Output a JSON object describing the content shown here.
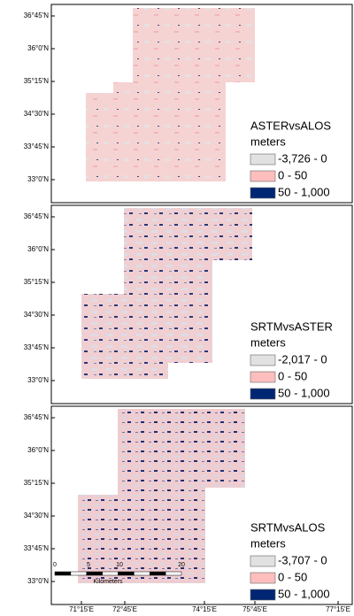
{
  "panels": [
    {
      "lat_labels": [
        "36°45'N",
        "36°0'N",
        "35°15'N",
        "34°30'N",
        "33°45'N",
        "33°0'N"
      ],
      "legend": {
        "title": "ASTERvsALOS",
        "unit": "meters",
        "items": [
          {
            "label": "-3,726 - 0",
            "color": "#e1e1e1"
          },
          {
            "label": "0 - 50",
            "color": "#ffbebe"
          },
          {
            "label": "50 - 1,000",
            "color": "#002673"
          }
        ]
      }
    },
    {
      "lat_labels": [
        "36°45'N",
        "36°0'N",
        "35°15'N",
        "34°30'N",
        "33°45'N",
        "33°0'N"
      ],
      "legend": {
        "title": "SRTMvsASTER",
        "unit": "meters",
        "items": [
          {
            "label": "-2,017 - 0",
            "color": "#e1e1e1"
          },
          {
            "label": "0 - 50",
            "color": "#ffbebe"
          },
          {
            "label": "50 - 1,000",
            "color": "#002673"
          }
        ]
      }
    },
    {
      "lat_labels": [
        "36°45'N",
        "36°0'N",
        "35°15'N",
        "34°30'N",
        "33°45'N",
        "33°0'N"
      ],
      "legend": {
        "title": "SRTMvsALOS",
        "unit": "meters",
        "items": [
          {
            "label": "-3,707 - 0",
            "color": "#e1e1e1"
          },
          {
            "label": "0 - 50",
            "color": "#ffbebe"
          },
          {
            "label": "50 - 1,000",
            "color": "#002673"
          }
        ]
      }
    }
  ],
  "scale_bar": {
    "ticks": [
      "0",
      "5",
      "10",
      "20"
    ],
    "unit": "Kilometers"
  },
  "lon_labels": [
    "71°15'E",
    "72°45'E",
    "74°15'E",
    "75°45'E",
    "77°15'E"
  ]
}
